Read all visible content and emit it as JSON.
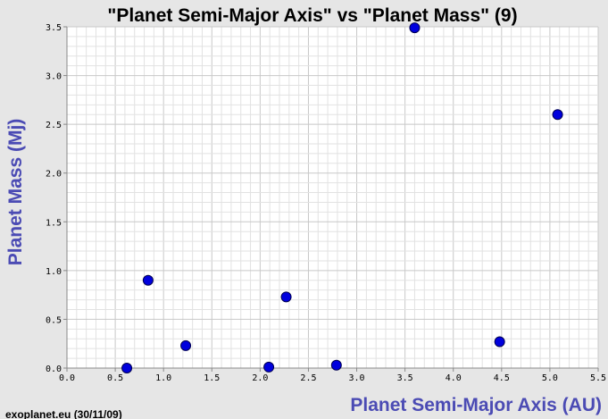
{
  "chart_data": {
    "type": "scatter",
    "title": "\"Planet Semi-Major Axis\"  vs \"Planet Mass\" (9)",
    "xlabel": "Planet Semi-Major Axis (AU)",
    "ylabel": "Planet Mass (Mj)",
    "xlim": [
      0.0,
      5.5
    ],
    "ylim": [
      0.0,
      3.5
    ],
    "xticks": [
      "0.0",
      "0.5",
      "1.0",
      "1.5",
      "2.0",
      "2.5",
      "3.0",
      "3.5",
      "4.0",
      "4.5",
      "5.0",
      "5.5"
    ],
    "yticks": [
      "0.0",
      "0.5",
      "1.0",
      "1.5",
      "2.0",
      "2.5",
      "3.0",
      "3.5"
    ],
    "grid": true,
    "marker_color": "#0000dd",
    "points": [
      {
        "x": 0.62,
        "y": 0.0
      },
      {
        "x": 0.84,
        "y": 0.9
      },
      {
        "x": 1.23,
        "y": 0.23
      },
      {
        "x": 2.09,
        "y": 0.01
      },
      {
        "x": 2.27,
        "y": 0.73
      },
      {
        "x": 2.79,
        "y": 0.03
      },
      {
        "x": 3.6,
        "y": 3.49
      },
      {
        "x": 4.48,
        "y": 0.27
      },
      {
        "x": 5.08,
        "y": 2.6
      }
    ]
  },
  "footer": {
    "credit": "exoplanet.eu (30/11/09)"
  }
}
